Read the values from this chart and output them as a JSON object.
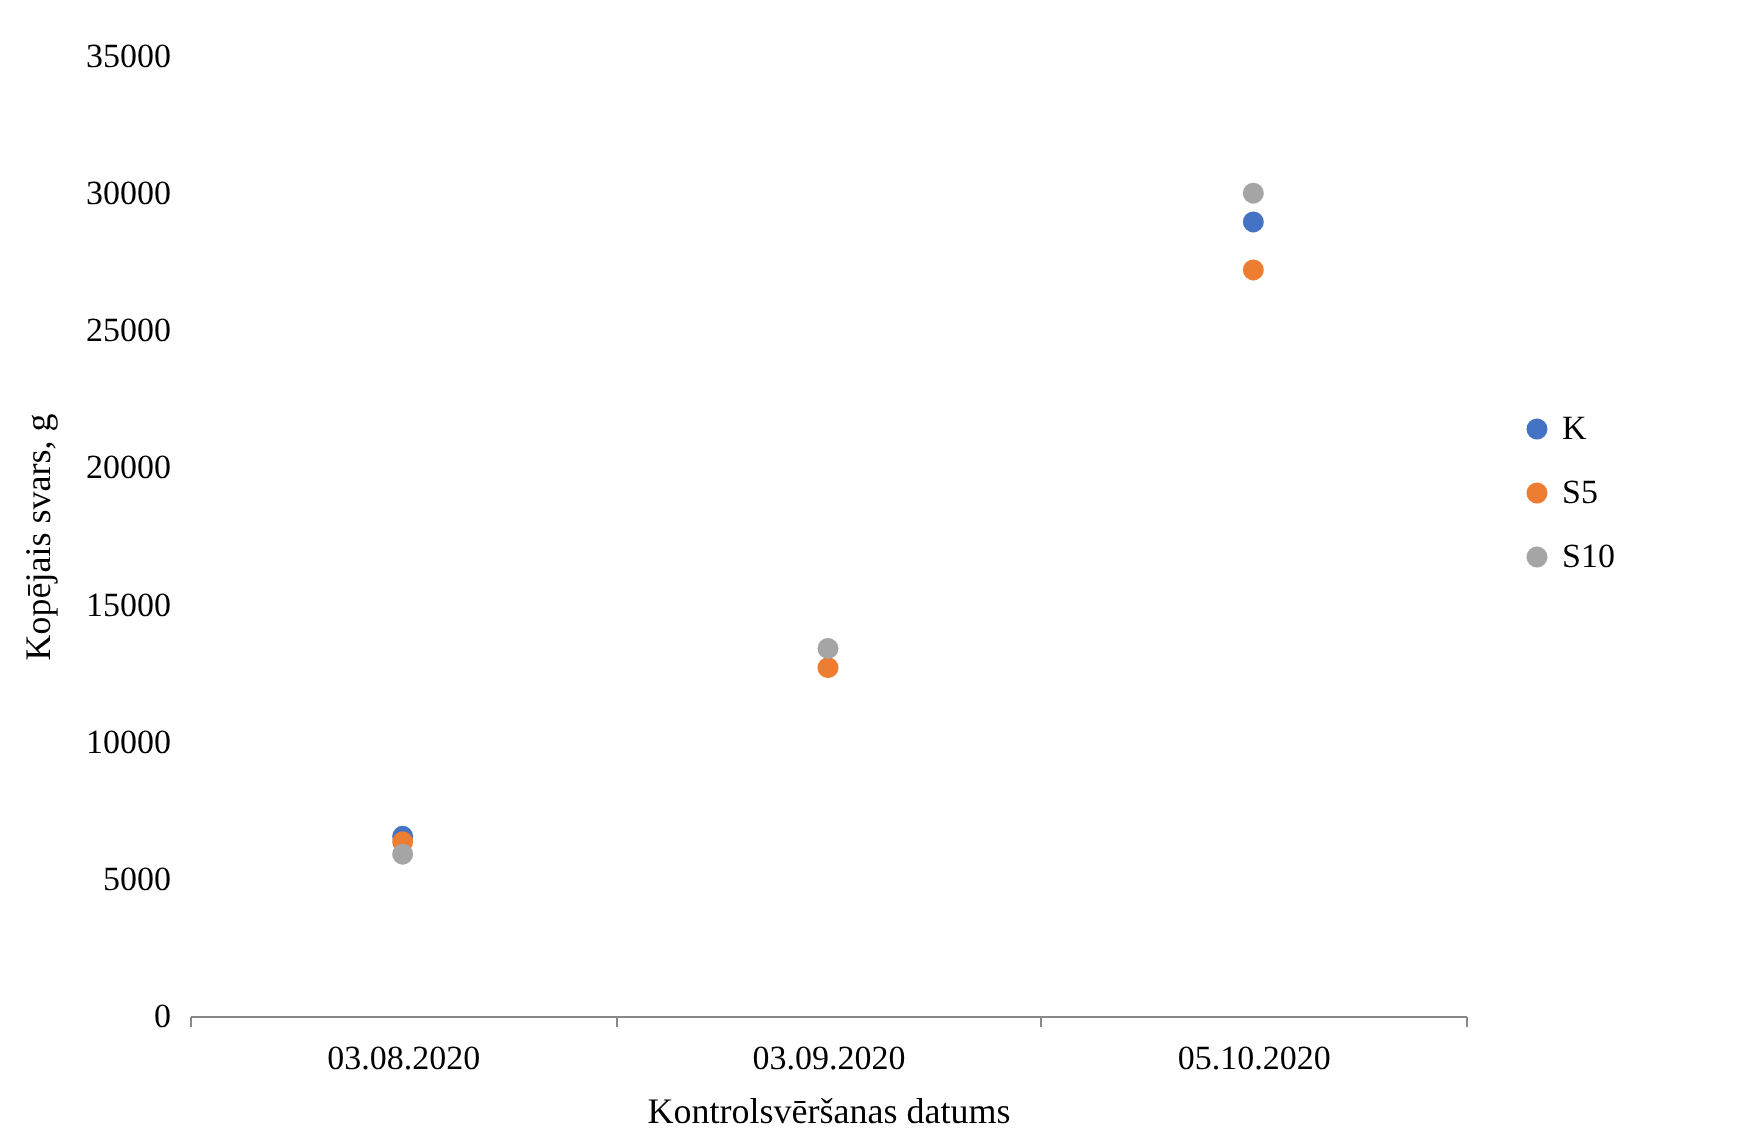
{
  "chart_data": {
    "type": "scatter",
    "xlabel": "Kontrolsvēršanas datums",
    "ylabel": "Kopējais svars, g",
    "categories": [
      "03.08.2020",
      "03.09.2020",
      "05.10.2020"
    ],
    "series": [
      {
        "name": "K",
        "color": "#4472c4",
        "values": [
          6550,
          null,
          28950
        ]
      },
      {
        "name": "S5",
        "color": "#ed7d31",
        "values": [
          6350,
          12700,
          27200
        ]
      },
      {
        "name": "S10",
        "color": "#a5a5a5",
        "values": [
          5900,
          13400,
          30000
        ]
      }
    ],
    "ylim": [
      0,
      35000
    ],
    "yticks": [
      0,
      5000,
      10000,
      15000,
      20000,
      25000,
      30000,
      35000
    ],
    "grid": false,
    "legend": "right",
    "marker": "circle"
  }
}
